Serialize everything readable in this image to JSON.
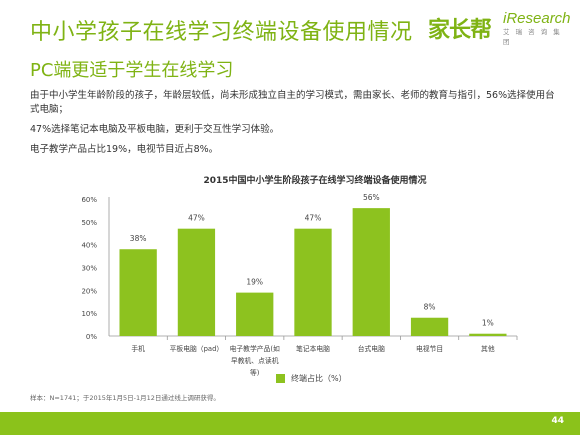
{
  "header": {
    "title": "中小学孩子在线学习终端设备使用情况",
    "subtitle": "PC端更适于学生在线学习",
    "logo_left": "家长帮",
    "logo_right": "iResearch",
    "logo_right_sub": "艾 瑞 咨 询 集 团"
  },
  "body": {
    "para1": "由于中小学生年龄阶段的孩子，年龄层较低，尚未形成独立自主的学习模式，需由家长、老师的教育与指引，56%选择使用台式电脑；",
    "para2": "47%选择笔记本电脑及平板电脑，更利于交互性学习体验。",
    "para3": "电子教学产品占比19%，电视节目近占8%。"
  },
  "footnote": "样本：N=1741；于2015年1月5日-1月12日通过线上调研获得。",
  "page_number": "44",
  "colors": {
    "accent": "#7fb314",
    "bar": "#8dc21f"
  },
  "chart_data": {
    "type": "bar",
    "title": "2015中国中小学生阶段孩子在线学习终端设备使用情况",
    "categories": [
      [
        "手机"
      ],
      [
        "平板电脑（pad）"
      ],
      [
        "电子教学产品(如",
        "早教机、点读机",
        "等)"
      ],
      [
        "笔记本电脑"
      ],
      [
        "台式电脑"
      ],
      [
        "电视节目"
      ],
      [
        "其他"
      ]
    ],
    "values": [
      38,
      47,
      19,
      47,
      56,
      8,
      1
    ],
    "value_labels": [
      "38%",
      "47%",
      "19%",
      "47%",
      "56%",
      "8%",
      "1%"
    ],
    "ylim": [
      0,
      60
    ],
    "yticks": [
      0,
      10,
      20,
      30,
      40,
      50,
      60
    ],
    "ytick_labels": [
      "0%",
      "10%",
      "20%",
      "30%",
      "40%",
      "50%",
      "60%"
    ],
    "legend": {
      "label": "终端占比（%）",
      "position": "bottom"
    },
    "grid": false
  }
}
